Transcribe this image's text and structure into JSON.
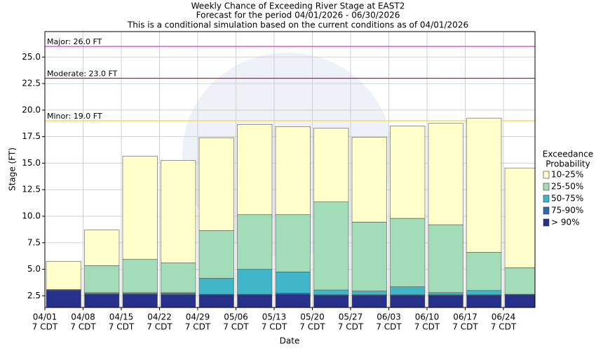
{
  "chart_data": {
    "type": "bar",
    "title": [
      "Weekly Chance of Exceeding River Stage at EAST2",
      "Forecast for the period 04/01/2026 - 06/30/2026",
      "This is a conditional simulation based on the current conditions as of 04/01/2026"
    ],
    "x_label": "Date",
    "y_label": "Stage (FT)",
    "categories": [
      "04/01",
      "04/08",
      "04/15",
      "04/22",
      "04/29",
      "05/06",
      "05/13",
      "05/20",
      "05/27",
      "06/03",
      "06/10",
      "06/17",
      "06/24"
    ],
    "category_sublabel": "7 CDT",
    "ylim": [
      1.4,
      27.4
    ],
    "yticks": [
      2.5,
      {
        "value": 5,
        "label": "5.0"
      },
      7.5,
      {
        "value": 10,
        "label": "10.0"
      },
      12.5,
      {
        "value": 15,
        "label": "15.0"
      },
      17.5,
      {
        "value": 20,
        "label": "20.0"
      },
      22.5,
      {
        "value": 25,
        "label": "25.0"
      }
    ],
    "grid": true,
    "legend_title": [
      "Exceedance",
      "Probability"
    ],
    "series": [
      {
        "name": "> 90%",
        "color": "#27318c",
        "values": [
          3.0,
          2.65,
          2.65,
          2.6,
          2.6,
          2.6,
          2.65,
          2.55,
          2.55,
          2.55,
          2.55,
          2.55,
          2.6
        ]
      },
      {
        "name": "75-90%",
        "color": "#2d6db3",
        "values": [
          3.05,
          2.7,
          2.7,
          2.7,
          2.65,
          2.65,
          2.75,
          2.6,
          2.6,
          2.6,
          2.6,
          2.6,
          2.65
        ]
      },
      {
        "name": "50-75%",
        "color": "#41b6c8",
        "values": [
          3.05,
          2.8,
          2.8,
          2.8,
          4.15,
          5.0,
          4.75,
          3.05,
          2.95,
          3.35,
          2.8,
          3.0,
          2.65
        ]
      },
      {
        "name": "25-50%",
        "color": "#a3dcb8",
        "values": [
          3.1,
          5.35,
          5.95,
          5.6,
          8.65,
          10.15,
          10.15,
          11.35,
          9.45,
          9.8,
          9.2,
          6.6,
          5.15
        ]
      },
      {
        "name": "10-25%",
        "color": "#ffffcc",
        "values": [
          5.75,
          8.7,
          15.65,
          15.25,
          17.4,
          18.65,
          18.45,
          18.3,
          17.45,
          18.5,
          18.75,
          19.25,
          14.55
        ]
      }
    ],
    "thresholds": [
      {
        "label": "Major: 26.0 FT",
        "value": 26.0,
        "color": "#cc44cc"
      },
      {
        "label": "Moderate: 23.0 FT",
        "value": 23.0,
        "color": "#b0203c"
      },
      {
        "label": "Minor: 19.0 FT",
        "value": 19.0,
        "color": "#f0d840"
      }
    ]
  }
}
